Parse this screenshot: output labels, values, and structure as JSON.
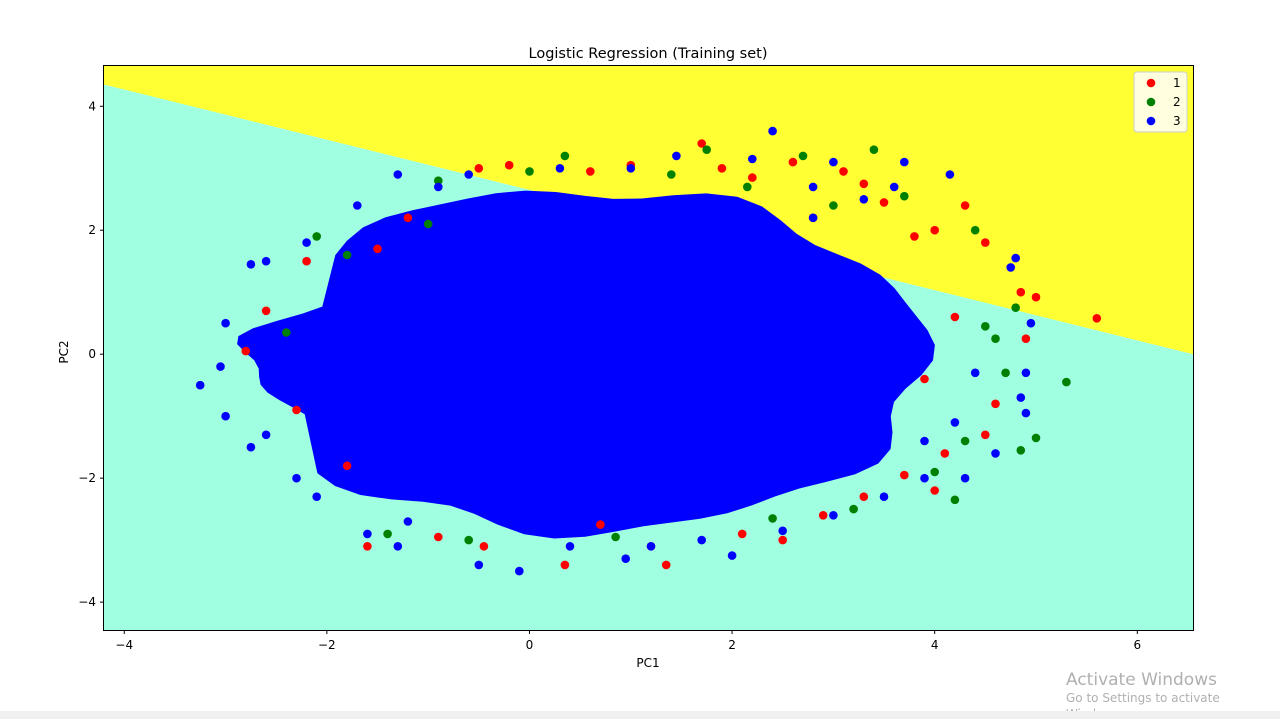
{
  "chart_data": {
    "type": "scatter",
    "title": "Logistic Regression (Training set)",
    "xlabel": "PC1",
    "ylabel": "PC2",
    "xlim": [
      -4.2,
      6.55
    ],
    "ylim": [
      -4.45,
      4.65
    ],
    "xticks": [
      -4,
      -2,
      0,
      2,
      4,
      6
    ],
    "yticks": [
      -4,
      -2,
      0,
      2,
      4
    ],
    "xtick_labels": [
      "−4",
      "−2",
      "0",
      "2",
      "4",
      "6"
    ],
    "ytick_labels": [
      "−4",
      "−2",
      "0",
      "2",
      "4"
    ],
    "legend_position": "top-right",
    "grid": false,
    "decision_regions": [
      {
        "class": "1",
        "color": "#ffff33",
        "side": "above boundary"
      },
      {
        "class": "3",
        "color": "#a0ffe0",
        "side": "below boundary"
      }
    ],
    "decision_boundary": {
      "x": [
        -4.2,
        6.55
      ],
      "y": [
        4.35,
        0.0
      ]
    },
    "series": [
      {
        "name": "1",
        "color": "#ff0000",
        "points": [
          [
            1.7,
            3.4
          ],
          [
            4.3,
            2.4
          ],
          [
            4.85,
            1.0
          ],
          [
            5.0,
            0.92
          ],
          [
            5.6,
            0.58
          ],
          [
            4.5,
            1.8
          ],
          [
            3.3,
            2.75
          ],
          [
            2.6,
            3.1
          ],
          [
            4.0,
            2.0
          ],
          [
            3.1,
            2.95
          ],
          [
            2.2,
            2.85
          ],
          [
            1.9,
            3.0
          ],
          [
            -1.5,
            1.7
          ],
          [
            -2.2,
            1.5
          ],
          [
            -2.6,
            0.7
          ],
          [
            -2.8,
            0.05
          ],
          [
            -0.45,
            -3.1
          ],
          [
            0.35,
            -3.4
          ],
          [
            1.35,
            -3.4
          ],
          [
            2.1,
            -2.9
          ],
          [
            4.0,
            -2.2
          ],
          [
            4.5,
            -1.3
          ],
          [
            3.7,
            -1.95
          ],
          [
            -1.8,
            -1.8
          ],
          [
            -1.6,
            -3.1
          ],
          [
            -0.9,
            -2.95
          ],
          [
            0.7,
            -2.75
          ],
          [
            3.3,
            -2.3
          ],
          [
            2.9,
            -2.6
          ],
          [
            4.9,
            0.25
          ],
          [
            4.2,
            0.6
          ],
          [
            3.8,
            1.9
          ],
          [
            2.8,
            2.2
          ],
          [
            -0.2,
            3.05
          ],
          [
            0.6,
            2.95
          ],
          [
            3.9,
            -0.4
          ],
          [
            4.6,
            -0.8
          ],
          [
            -2.3,
            -0.9
          ],
          [
            1.0,
            3.05
          ],
          [
            -1.2,
            2.2
          ],
          [
            2.5,
            -3.0
          ],
          [
            4.1,
            -1.6
          ],
          [
            3.5,
            2.45
          ],
          [
            1.2,
            -3.1
          ],
          [
            -0.5,
            3.0
          ]
        ]
      },
      {
        "name": "2",
        "color": "#008000",
        "points": [
          [
            5.3,
            -0.45
          ],
          [
            5.0,
            -1.35
          ],
          [
            4.2,
            -2.35
          ],
          [
            4.85,
            -1.55
          ],
          [
            4.4,
            2.0
          ],
          [
            3.4,
            3.3
          ],
          [
            2.7,
            3.2
          ],
          [
            1.75,
            3.3
          ],
          [
            0.35,
            3.2
          ],
          [
            -0.9,
            2.8
          ],
          [
            -1.8,
            1.6
          ],
          [
            4.8,
            0.75
          ],
          [
            4.5,
            0.45
          ],
          [
            4.3,
            -1.4
          ],
          [
            3.2,
            -2.5
          ],
          [
            0.85,
            -2.95
          ],
          [
            -0.6,
            -3.0
          ],
          [
            -2.4,
            0.35
          ],
          [
            4.7,
            -0.3
          ],
          [
            3.0,
            2.4
          ],
          [
            2.15,
            2.7
          ],
          [
            -1.4,
            -2.9
          ],
          [
            4.0,
            -1.9
          ],
          [
            -2.1,
            1.9
          ],
          [
            1.4,
            2.9
          ],
          [
            3.7,
            2.55
          ],
          [
            4.6,
            0.25
          ],
          [
            2.4,
            -2.65
          ],
          [
            0.0,
            2.95
          ],
          [
            -1.0,
            2.1
          ]
        ]
      },
      {
        "name": "3",
        "color": "#0000ff",
        "points": [
          [
            2.4,
            3.6
          ],
          [
            1.45,
            3.2
          ],
          [
            2.2,
            3.15
          ],
          [
            3.0,
            3.1
          ],
          [
            3.7,
            3.1
          ],
          [
            4.15,
            2.9
          ],
          [
            4.8,
            1.55
          ],
          [
            4.95,
            0.5
          ],
          [
            4.9,
            -0.3
          ],
          [
            4.85,
            -0.7
          ],
          [
            4.9,
            -0.95
          ],
          [
            4.2,
            -1.1
          ],
          [
            3.9,
            -2.0
          ],
          [
            3.5,
            -2.3
          ],
          [
            2.5,
            -2.85
          ],
          [
            1.7,
            -3.0
          ],
          [
            2.0,
            -3.25
          ],
          [
            0.95,
            -3.3
          ],
          [
            -0.1,
            -3.5
          ],
          [
            -0.5,
            -3.4
          ],
          [
            -1.3,
            -3.1
          ],
          [
            -1.6,
            -2.9
          ],
          [
            -2.3,
            -2.0
          ],
          [
            -2.75,
            -1.5
          ],
          [
            -3.0,
            -1.0
          ],
          [
            -3.25,
            -0.5
          ],
          [
            -3.05,
            -0.2
          ],
          [
            -2.75,
            1.45
          ],
          [
            -2.6,
            1.5
          ],
          [
            -3.0,
            0.5
          ],
          [
            -1.3,
            2.9
          ],
          [
            -0.6,
            2.9
          ],
          [
            0.3,
            3.0
          ],
          [
            1.0,
            3.0
          ],
          [
            3.3,
            2.5
          ],
          [
            2.8,
            2.7
          ],
          [
            4.4,
            -0.3
          ],
          [
            4.6,
            -1.6
          ],
          [
            4.3,
            -2.0
          ],
          [
            3.0,
            -2.6
          ],
          [
            -2.1,
            -2.3
          ],
          [
            -1.2,
            -2.7
          ],
          [
            0.4,
            -3.1
          ],
          [
            1.2,
            -3.1
          ],
          [
            -2.2,
            1.8
          ],
          [
            -1.7,
            2.4
          ],
          [
            -2.6,
            -1.3
          ],
          [
            4.75,
            1.4
          ],
          [
            3.9,
            -1.4
          ],
          [
            3.6,
            2.7
          ],
          [
            2.8,
            2.2
          ],
          [
            -0.9,
            2.7
          ]
        ]
      }
    ]
  },
  "watermark": {
    "title": "Activate Windows",
    "subtitle": "Go to Settings to activate Windows."
  }
}
